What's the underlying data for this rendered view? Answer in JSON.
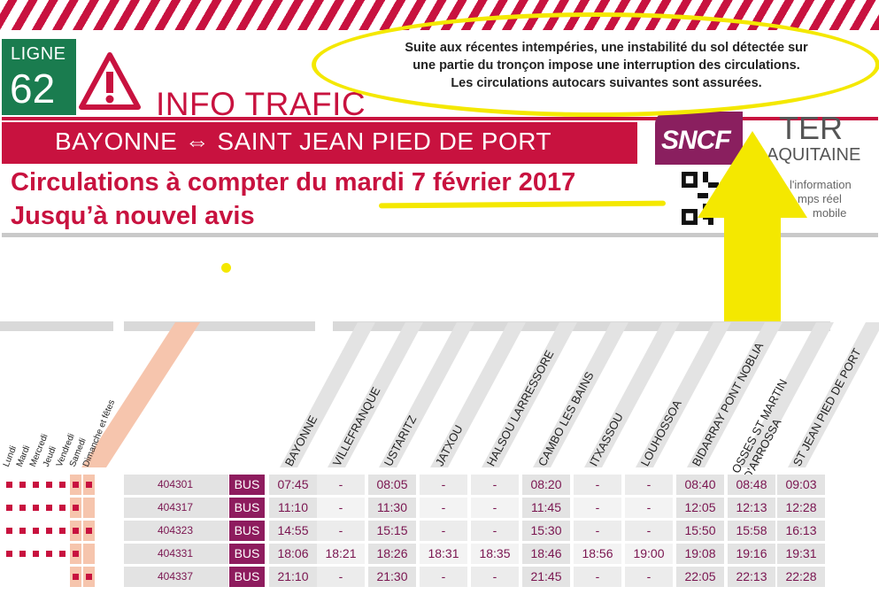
{
  "header": {
    "ligne_label": "LIGNE",
    "ligne_number": "62",
    "info_trafic": "INFO TRAFIC",
    "route": "BAYONNE ⇔ SAINT JEAN PIED DE PORT",
    "date_line1": "Circulations à compter du mardi 7 février 2017",
    "date_line2": "Jusqu’à nouvel avis"
  },
  "notice": {
    "line1": "Suite aux récentes intempéries, une instabilité du sol détectée sur",
    "line2": "une partie du tronçon impose une interruption des circulations.",
    "line3": "Les circulations autocars suivantes sont assurées."
  },
  "brand": {
    "sncf": "SNCF",
    "ter": "TER",
    "region": "AQUITAINE",
    "qr_line1": "l'information",
    "qr_line2": "mps réel",
    "qr_line3": "mobile"
  },
  "colors": {
    "primary": "#c8123f",
    "ligne": "#1a7c4f",
    "bus": "#8e1c5e",
    "highlight": "#f4e800"
  },
  "timetable": {
    "days": [
      "Lundi",
      "Mardi",
      "Mercredi",
      "Jeudi",
      "Vendredi",
      "Samedi",
      "Dimanche et fêtes"
    ],
    "stops": [
      "BAYONNE",
      "VILLEFRANQUE",
      "USTARITZ",
      "JATXOU",
      "HALSOU LARRESSORE",
      "CAMBO LES BAINS",
      "ITXASSOU",
      "LOUHOSSOA",
      "BIDARRAY PONT NOBLIA",
      "OSSES ST MARTIN\nD'ARROSSA",
      "ST JEAN PIED DE PORT"
    ],
    "rows": [
      {
        "number": "404301",
        "mode": "BUS",
        "days": [
          1,
          1,
          1,
          1,
          1,
          1,
          1
        ],
        "times": [
          "07:45",
          "-",
          "08:05",
          "-",
          "-",
          "08:20",
          "-",
          "-",
          "08:40",
          "08:48",
          "09:03"
        ]
      },
      {
        "number": "404317",
        "mode": "BUS",
        "days": [
          1,
          1,
          1,
          1,
          1,
          1,
          0
        ],
        "times": [
          "11:10",
          "-",
          "11:30",
          "-",
          "-",
          "11:45",
          "-",
          "-",
          "12:05",
          "12:13",
          "12:28"
        ]
      },
      {
        "number": "404323",
        "mode": "BUS",
        "days": [
          1,
          1,
          1,
          1,
          1,
          1,
          1
        ],
        "times": [
          "14:55",
          "-",
          "15:15",
          "-",
          "-",
          "15:30",
          "-",
          "-",
          "15:50",
          "15:58",
          "16:13"
        ]
      },
      {
        "number": "404331",
        "mode": "BUS",
        "days": [
          1,
          1,
          1,
          1,
          1,
          1,
          0
        ],
        "times": [
          "18:06",
          "18:21",
          "18:26",
          "18:31",
          "18:35",
          "18:46",
          "18:56",
          "19:00",
          "19:08",
          "19:16",
          "19:31"
        ]
      },
      {
        "number": "404337",
        "mode": "BUS",
        "days": [
          0,
          0,
          0,
          0,
          0,
          1,
          1
        ],
        "times": [
          "21:10",
          "-",
          "21:30",
          "-",
          "-",
          "21:45",
          "-",
          "-",
          "22:05",
          "22:13",
          "22:28"
        ]
      }
    ]
  }
}
